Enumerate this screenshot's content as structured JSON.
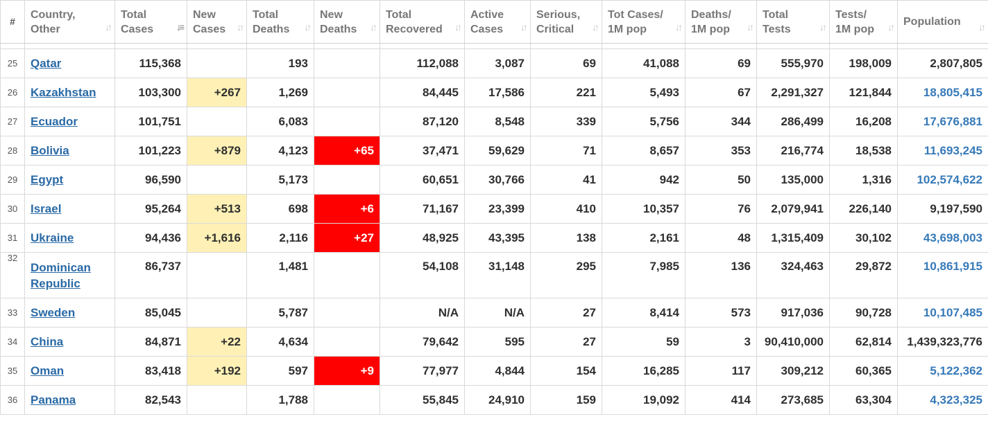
{
  "headers": [
    {
      "label": "#"
    },
    {
      "label": "Country,\nOther"
    },
    {
      "label": "Total\nCases"
    },
    {
      "label": "New\nCases"
    },
    {
      "label": "Total\nDeaths"
    },
    {
      "label": "New\nDeaths"
    },
    {
      "label": "Total\nRecovered"
    },
    {
      "label": "Active\nCases"
    },
    {
      "label": "Serious,\nCritical"
    },
    {
      "label": "Tot Cases/\n1M pop"
    },
    {
      "label": "Deaths/\n1M pop"
    },
    {
      "label": "Total\nTests"
    },
    {
      "label": "Tests/\n1M pop"
    },
    {
      "label": "Population"
    }
  ],
  "sort_column": "Total Cases",
  "colors": {
    "new_cases_bg": "#fff1b6",
    "new_deaths_bg": "#ff0000",
    "link": "#2a6aa6",
    "header_text": "#777777"
  },
  "rows": [
    {
      "idx": "25",
      "country": "Qatar",
      "total_cases": "115,368",
      "new_cases": "",
      "total_deaths": "193",
      "new_deaths": "",
      "total_recovered": "112,088",
      "active_cases": "3,087",
      "serious": "69",
      "cases_per_1m": "41,088",
      "deaths_per_1m": "69",
      "total_tests": "555,970",
      "tests_per_1m": "198,009",
      "population": "2,807,805"
    },
    {
      "idx": "26",
      "country": "Kazakhstan",
      "total_cases": "103,300",
      "new_cases": "+267",
      "total_deaths": "1,269",
      "new_deaths": "",
      "total_recovered": "84,445",
      "active_cases": "17,586",
      "serious": "221",
      "cases_per_1m": "5,493",
      "deaths_per_1m": "67",
      "total_tests": "2,291,327",
      "tests_per_1m": "121,844",
      "population": "18,805,415"
    },
    {
      "idx": "27",
      "country": "Ecuador",
      "total_cases": "101,751",
      "new_cases": "",
      "total_deaths": "6,083",
      "new_deaths": "",
      "total_recovered": "87,120",
      "active_cases": "8,548",
      "serious": "339",
      "cases_per_1m": "5,756",
      "deaths_per_1m": "344",
      "total_tests": "286,499",
      "tests_per_1m": "16,208",
      "population": "17,676,881"
    },
    {
      "idx": "28",
      "country": "Bolivia",
      "total_cases": "101,223",
      "new_cases": "+879",
      "total_deaths": "4,123",
      "new_deaths": "+65",
      "total_recovered": "37,471",
      "active_cases": "59,629",
      "serious": "71",
      "cases_per_1m": "8,657",
      "deaths_per_1m": "353",
      "total_tests": "216,774",
      "tests_per_1m": "18,538",
      "population": "11,693,245"
    },
    {
      "idx": "29",
      "country": "Egypt",
      "total_cases": "96,590",
      "new_cases": "",
      "total_deaths": "5,173",
      "new_deaths": "",
      "total_recovered": "60,651",
      "active_cases": "30,766",
      "serious": "41",
      "cases_per_1m": "942",
      "deaths_per_1m": "50",
      "total_tests": "135,000",
      "tests_per_1m": "1,316",
      "population": "102,574,622"
    },
    {
      "idx": "30",
      "country": "Israel",
      "total_cases": "95,264",
      "new_cases": "+513",
      "total_deaths": "698",
      "new_deaths": "+6",
      "total_recovered": "71,167",
      "active_cases": "23,399",
      "serious": "410",
      "cases_per_1m": "10,357",
      "deaths_per_1m": "76",
      "total_tests": "2,079,941",
      "tests_per_1m": "226,140",
      "population": "9,197,590"
    },
    {
      "idx": "31",
      "country": "Ukraine",
      "total_cases": "94,436",
      "new_cases": "+1,616",
      "total_deaths": "2,116",
      "new_deaths": "+27",
      "total_recovered": "48,925",
      "active_cases": "43,395",
      "serious": "138",
      "cases_per_1m": "2,161",
      "deaths_per_1m": "48",
      "total_tests": "1,315,409",
      "tests_per_1m": "30,102",
      "population": "43,698,003"
    },
    {
      "idx": "32",
      "country": "Dominican Republic",
      "total_cases": "86,737",
      "new_cases": "",
      "total_deaths": "1,481",
      "new_deaths": "",
      "total_recovered": "54,108",
      "active_cases": "31,148",
      "serious": "295",
      "cases_per_1m": "7,985",
      "deaths_per_1m": "136",
      "total_tests": "324,463",
      "tests_per_1m": "29,872",
      "population": "10,861,915"
    },
    {
      "idx": "33",
      "country": "Sweden",
      "total_cases": "85,045",
      "new_cases": "",
      "total_deaths": "5,787",
      "new_deaths": "",
      "total_recovered": "N/A",
      "active_cases": "N/A",
      "serious": "27",
      "cases_per_1m": "8,414",
      "deaths_per_1m": "573",
      "total_tests": "917,036",
      "tests_per_1m": "90,728",
      "population": "10,107,485"
    },
    {
      "idx": "34",
      "country": "China",
      "total_cases": "84,871",
      "new_cases": "+22",
      "total_deaths": "4,634",
      "new_deaths": "",
      "total_recovered": "79,642",
      "active_cases": "595",
      "serious": "27",
      "cases_per_1m": "59",
      "deaths_per_1m": "3",
      "total_tests": "90,410,000",
      "tests_per_1m": "62,814",
      "population": "1,439,323,776"
    },
    {
      "idx": "35",
      "country": "Oman",
      "total_cases": "83,418",
      "new_cases": "+192",
      "total_deaths": "597",
      "new_deaths": "+9",
      "total_recovered": "77,977",
      "active_cases": "4,844",
      "serious": "154",
      "cases_per_1m": "16,285",
      "deaths_per_1m": "117",
      "total_tests": "309,212",
      "tests_per_1m": "60,365",
      "population": "5,122,362"
    },
    {
      "idx": "36",
      "country": "Panama",
      "total_cases": "82,543",
      "new_cases": "",
      "total_deaths": "1,788",
      "new_deaths": "",
      "total_recovered": "55,845",
      "active_cases": "24,910",
      "serious": "159",
      "cases_per_1m": "19,092",
      "deaths_per_1m": "414",
      "total_tests": "273,685",
      "tests_per_1m": "63,304",
      "population": "4,323,325"
    }
  ]
}
